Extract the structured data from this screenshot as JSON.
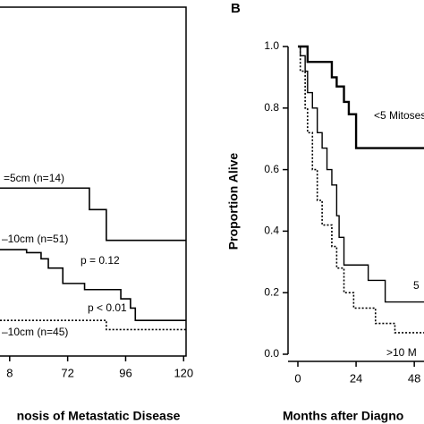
{
  "chart_data": [
    {
      "type": "line",
      "xlabel": "nosis of Metastatic Disease",
      "xlim": [
        44,
        121
      ],
      "ylim": [
        0,
        1
      ],
      "xticks": [
        {
          "value": 48,
          "label": "8"
        },
        72,
        96,
        120
      ],
      "series": [
        {
          "name": "=5cm (n=14)",
          "color": "#000000",
          "line_style": "solid",
          "x": [
            44,
            81,
            88,
            121
          ],
          "values": [
            0.54,
            0.47,
            0.37,
            0.37
          ]
        },
        {
          "name": "–10cm (n=51)",
          "color": "#000000",
          "line_style": "solid",
          "x": [
            44,
            55,
            61,
            64,
            70,
            79,
            94,
            98,
            100,
            121
          ],
          "values": [
            0.34,
            0.33,
            0.31,
            0.28,
            0.23,
            0.21,
            0.18,
            0.15,
            0.11,
            0.11
          ]
        },
        {
          "name": "–10cm (n=45)",
          "color": "#000000",
          "line_style": "dotted",
          "x": [
            44,
            88,
            121
          ],
          "values": [
            0.11,
            0.08,
            0.08
          ]
        }
      ],
      "annotations": [
        "p = 0.12",
        "p < 0.01"
      ]
    },
    {
      "type": "line",
      "panel_label": "B",
      "xlabel": "Months after Diagno",
      "ylabel": "Proportion Alive",
      "xlim": [
        0,
        52
      ],
      "ylim": [
        0,
        1
      ],
      "xticks": [
        0,
        24,
        48
      ],
      "yticks": [
        {
          "value": 0,
          "label": "0.0"
        },
        {
          "value": 0.2,
          "label": "0.2"
        },
        {
          "value": 0.4,
          "label": "0.4"
        },
        {
          "value": 0.6,
          "label": "0.6"
        },
        {
          "value": 0.8,
          "label": "0.8"
        },
        {
          "value": 1,
          "label": "1.0"
        }
      ],
      "series": [
        {
          "name": "<5 Mitoses",
          "color": "#000000",
          "line_style": "solid",
          "line_width": 2.4,
          "x": [
            0,
            4,
            14,
            16,
            19,
            21,
            24,
            52
          ],
          "values": [
            1,
            0.95,
            0.9,
            0.87,
            0.82,
            0.78,
            0.67,
            0.67
          ]
        },
        {
          "name": "5",
          "color": "#000000",
          "line_style": "solid",
          "line_width": 1.4,
          "x": [
            0,
            1,
            3,
            4,
            6,
            8,
            10,
            12,
            14,
            16,
            17,
            19,
            29,
            36,
            52
          ],
          "values": [
            1,
            0.97,
            0.92,
            0.85,
            0.8,
            0.72,
            0.67,
            0.6,
            0.55,
            0.45,
            0.38,
            0.29,
            0.24,
            0.17,
            0.17
          ]
        },
        {
          "name": ">10 M",
          "color": "#000000",
          "line_style": "dotted",
          "line_width": 1.6,
          "x": [
            0,
            1,
            3,
            4,
            6,
            8,
            10,
            14,
            16,
            19,
            23,
            32,
            40,
            52
          ],
          "values": [
            1,
            0.92,
            0.8,
            0.72,
            0.6,
            0.5,
            0.42,
            0.35,
            0.28,
            0.2,
            0.15,
            0.1,
            0.07,
            0.07
          ]
        }
      ]
    }
  ]
}
